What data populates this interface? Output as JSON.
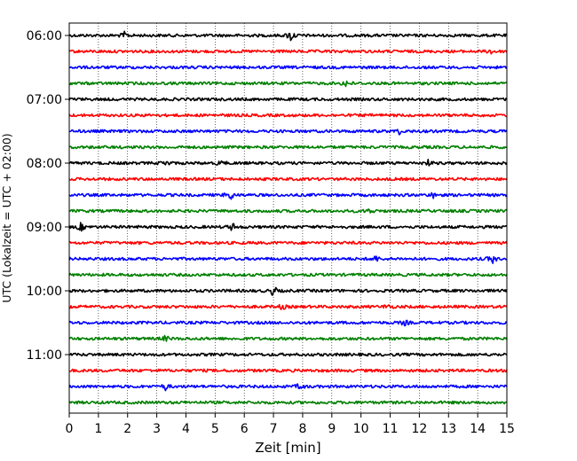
{
  "chart_data": {
    "type": "line",
    "subtype": "helicorder",
    "xlabel": "Zeit  [min]",
    "ylabel": "UTC (Lokalzeit = UTC + 02:00)",
    "xlim": [
      0,
      15
    ],
    "x_ticks": [
      0,
      1,
      2,
      3,
      4,
      5,
      6,
      7,
      8,
      9,
      10,
      11,
      12,
      13,
      14,
      15
    ],
    "x_tick_labels": [
      "0",
      "1",
      "2",
      "3",
      "4",
      "5",
      "6",
      "7",
      "8",
      "9",
      "10",
      "11",
      "12",
      "13",
      "14",
      "15"
    ],
    "y_tick_labels": [
      "06:00",
      "07:00",
      "08:00",
      "09:00",
      "10:00",
      "11:00"
    ],
    "vertical_grid": true,
    "grid_style": "dotted",
    "trace_colors": [
      "#000000",
      "#ff0000",
      "#0000ff",
      "#008000"
    ],
    "series": [
      {
        "start": "06:00",
        "events": [
          [
            1.9,
            0.5
          ],
          [
            7.6,
            1.0
          ]
        ]
      },
      {
        "start": "06:15",
        "events": [
          [
            14.5,
            0.5
          ]
        ]
      },
      {
        "start": "06:30",
        "events": []
      },
      {
        "start": "06:45",
        "events": [
          [
            9.5,
            0.6
          ]
        ]
      },
      {
        "start": "07:00",
        "events": []
      },
      {
        "start": "07:15",
        "events": []
      },
      {
        "start": "07:30",
        "events": [
          [
            11.3,
            0.4
          ]
        ]
      },
      {
        "start": "07:45",
        "events": []
      },
      {
        "start": "08:00",
        "events": [
          [
            3.3,
            0.5
          ],
          [
            5.2,
            0.4
          ],
          [
            12.3,
            0.4
          ]
        ]
      },
      {
        "start": "08:15",
        "events": []
      },
      {
        "start": "08:30",
        "events": [
          [
            5.5,
            1.0
          ],
          [
            12.5,
            0.5
          ]
        ]
      },
      {
        "start": "08:45",
        "events": [
          [
            10.3,
            0.4
          ]
        ]
      },
      {
        "start": "09:00",
        "events": [
          [
            0.4,
            0.6
          ],
          [
            5.6,
            0.6
          ]
        ]
      },
      {
        "start": "09:15",
        "events": []
      },
      {
        "start": "09:30",
        "events": [
          [
            10.5,
            0.5
          ],
          [
            14.5,
            0.7
          ]
        ]
      },
      {
        "start": "09:45",
        "events": []
      },
      {
        "start": "10:00",
        "events": [
          [
            7.0,
            0.8
          ]
        ]
      },
      {
        "start": "10:15",
        "events": [
          [
            7.3,
            0.4
          ],
          [
            10.9,
            0.4
          ]
        ]
      },
      {
        "start": "10:30",
        "events": [
          [
            11.5,
            0.4
          ]
        ]
      },
      {
        "start": "10:45",
        "events": [
          [
            3.3,
            0.4
          ]
        ]
      },
      {
        "start": "11:00",
        "events": []
      },
      {
        "start": "11:15",
        "events": []
      },
      {
        "start": "11:30",
        "events": [
          [
            3.3,
            0.5
          ],
          [
            7.9,
            0.5
          ]
        ]
      },
      {
        "start": "11:45",
        "events": []
      }
    ]
  }
}
